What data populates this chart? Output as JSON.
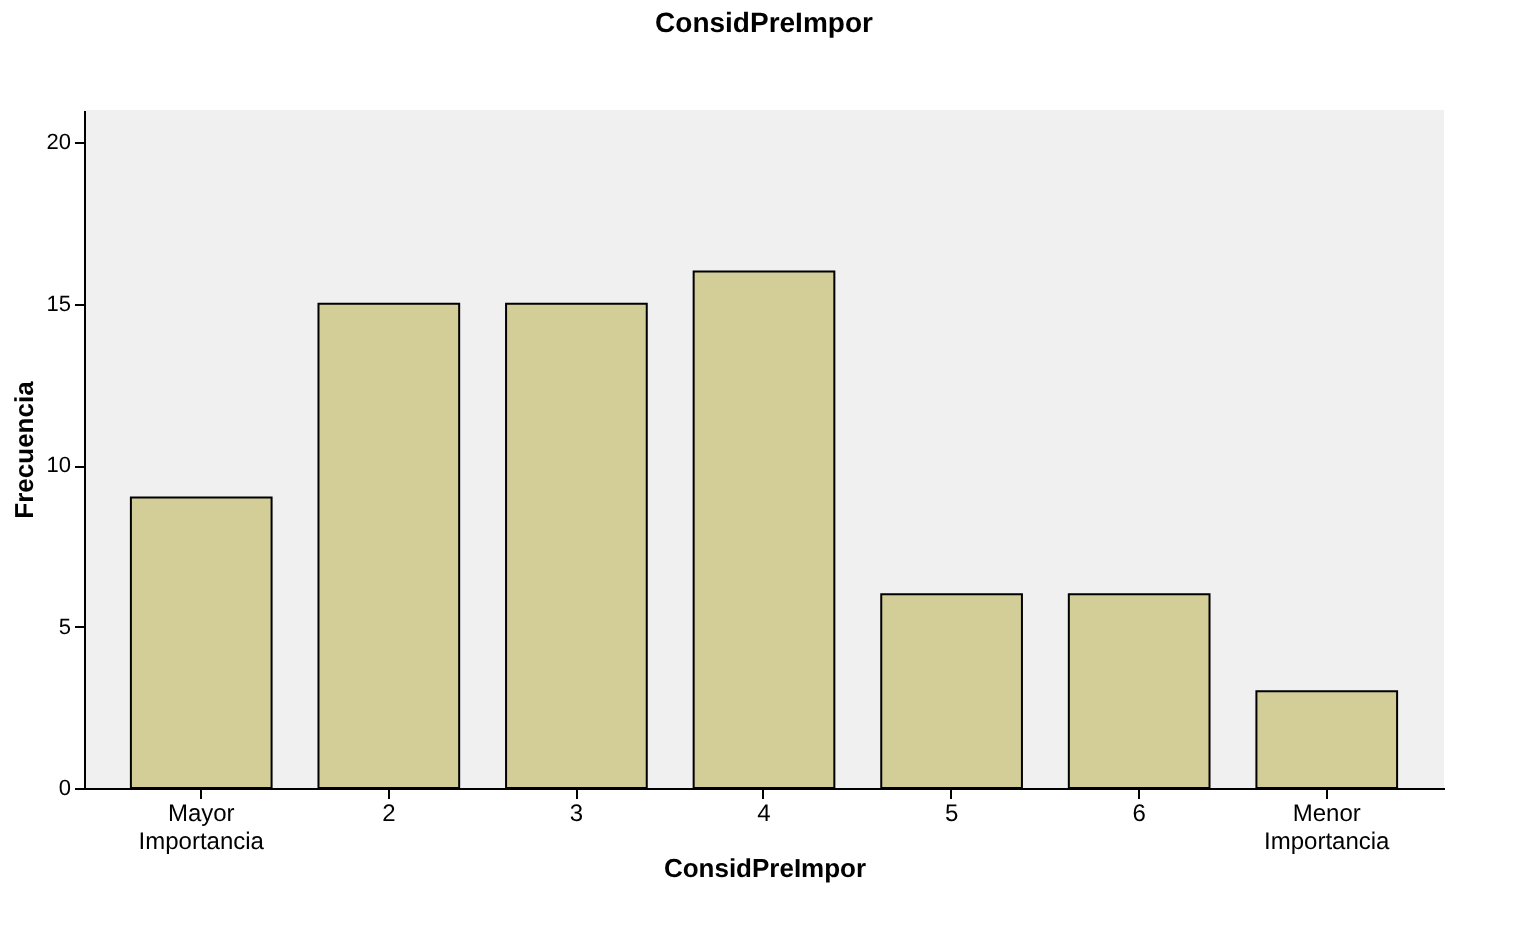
{
  "chart_data": {
    "type": "bar",
    "title": "ConsidPreImpor",
    "xlabel": "ConsidPreImpor",
    "ylabel": "Frecuencia",
    "categories": [
      "Mayor Importancia",
      "2",
      "3",
      "4",
      "5",
      "6",
      "Menor Importancia"
    ],
    "values": [
      9,
      15,
      15,
      16,
      6,
      6,
      3
    ],
    "color": "#d3ce97",
    "ylim": [
      0,
      21
    ],
    "yticks": [
      0,
      5,
      10,
      15,
      20
    ],
    "grid": false
  }
}
